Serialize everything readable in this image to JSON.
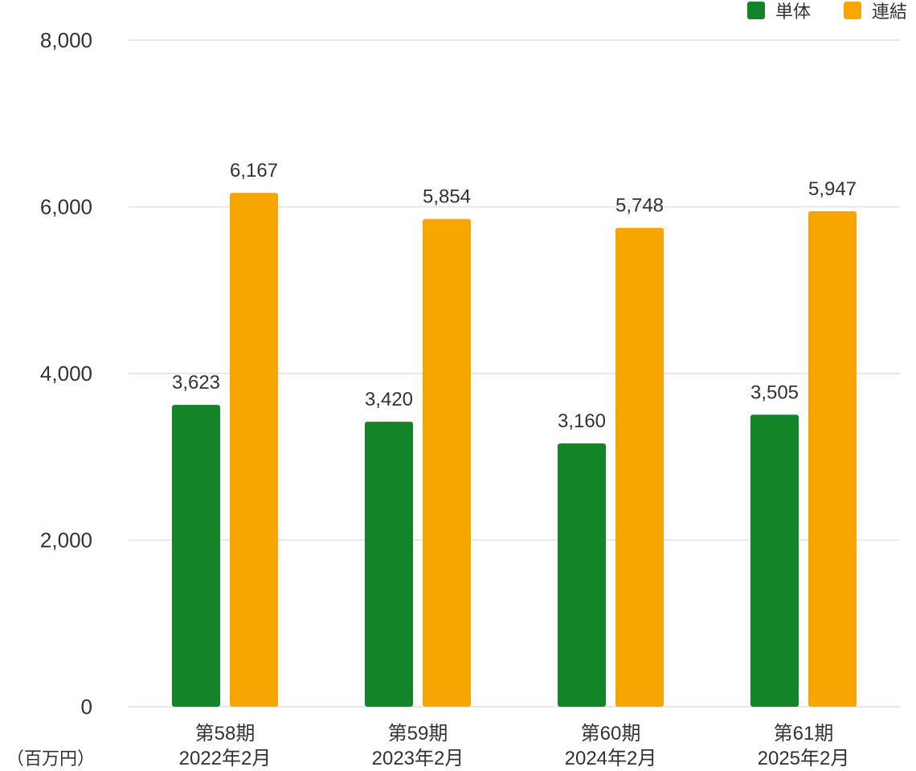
{
  "chart_data": {
    "type": "bar",
    "unit_label": "（百万円）",
    "categories": [
      {
        "line1": "第58期",
        "line2": "2022年2月"
      },
      {
        "line1": "第59期",
        "line2": "2023年2月"
      },
      {
        "line1": "第60期",
        "line2": "2024年2月"
      },
      {
        "line1": "第61期",
        "line2": "2025年2月"
      }
    ],
    "series": [
      {
        "name": "単体",
        "color": "#138428",
        "values": [
          3623,
          3420,
          3160,
          3505
        ],
        "labels": [
          "3,623",
          "3,420",
          "3,160",
          "3,505"
        ]
      },
      {
        "name": "連結",
        "color": "#F7A500",
        "values": [
          6167,
          5854,
          5748,
          5947
        ],
        "labels": [
          "6,167",
          "5,854",
          "5,748",
          "5,947"
        ]
      }
    ],
    "ylim": [
      0,
      8000
    ],
    "yticks": [
      0,
      2000,
      4000,
      6000,
      8000
    ],
    "ytick_labels": [
      "0",
      "2,000",
      "4,000",
      "6,000",
      "8,000"
    ],
    "grid": true,
    "legend_position": "top-right"
  }
}
